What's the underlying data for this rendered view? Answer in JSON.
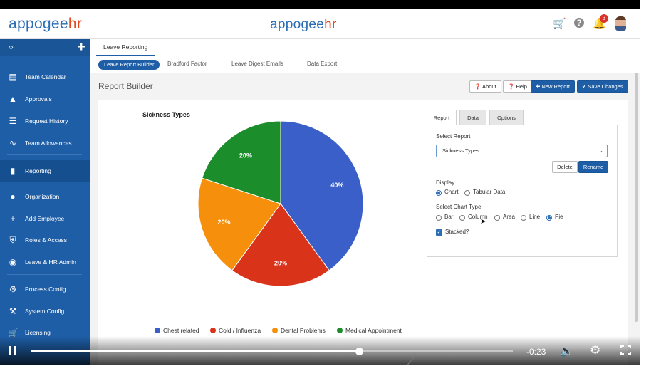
{
  "header": {
    "logo_left_prefix": "appogee",
    "logo_left_suffix": "hr",
    "logo_center_prefix": "appogee",
    "logo_center_suffix": "hr",
    "notification_count": "3"
  },
  "sidebar": {
    "items": [
      {
        "label": "Team Calendar",
        "icon": "calendar-icon"
      },
      {
        "label": "Approvals",
        "icon": "thumbs-up-icon"
      },
      {
        "label": "Request History",
        "icon": "list-icon"
      },
      {
        "label": "Team Allowances",
        "icon": "trend-line-icon"
      },
      {
        "label": "Reporting",
        "icon": "bar-chart-icon"
      },
      {
        "label": "Organization",
        "icon": "people-icon"
      },
      {
        "label": "Add Employee",
        "icon": "add-user-icon"
      },
      {
        "label": "Roles & Access",
        "icon": "shield-icon"
      },
      {
        "label": "Leave & HR Admin",
        "icon": "account-circle-icon"
      },
      {
        "label": "Process Config",
        "icon": "gear-icon"
      },
      {
        "label": "System Config",
        "icon": "wrench-icon"
      },
      {
        "label": "Licensing",
        "icon": "cart-icon"
      }
    ],
    "active": "Reporting"
  },
  "tabs": {
    "primary": "Leave Reporting",
    "secondary": [
      "Leave Report Builder",
      "Bradford Factor",
      "Leave Digest Emails",
      "Data Export"
    ]
  },
  "page": {
    "title": "Report Builder",
    "buttons": {
      "about": "About",
      "help": "Help",
      "new_report": "New Report",
      "save": "Save Changes"
    }
  },
  "panel": {
    "tabs": [
      "Report",
      "Data",
      "Options"
    ],
    "select_report_label": "Select Report",
    "selected_report": "Sickness Types",
    "delete": "Delete",
    "rename": "Rename",
    "display_label": "Display",
    "display_options": [
      "Chart",
      "Tabular Data"
    ],
    "display_selected": "Chart",
    "chart_type_label": "Select Chart Type",
    "chart_types": [
      "Bar",
      "Column",
      "Area",
      "Line",
      "Pie"
    ],
    "chart_type_selected": "Pie",
    "stacked_label": "Stacked?",
    "stacked": true
  },
  "chart_data": {
    "type": "pie",
    "title": "Sickness Types",
    "categories": [
      "Chest related",
      "Cold / Influenza",
      "Dental Problems",
      "Medical Appointment"
    ],
    "values": [
      40,
      20,
      20,
      20
    ],
    "labels": [
      "40%",
      "20%",
      "20%",
      "20%"
    ],
    "colors": [
      "#3a5fc9",
      "#d9341a",
      "#f68f0b",
      "#1b8d2a"
    ],
    "legend": "bottom"
  },
  "video": {
    "time": "-0:23",
    "progress": 0.68
  }
}
